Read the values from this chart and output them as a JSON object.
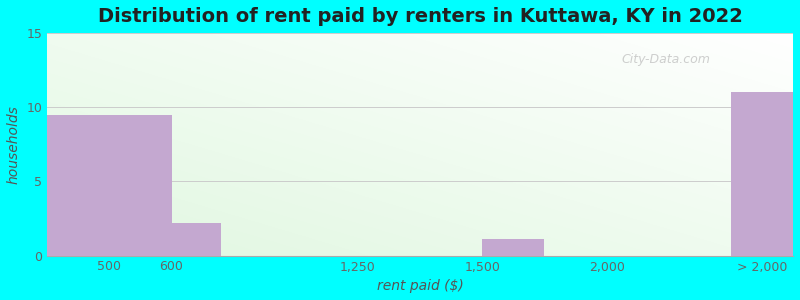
{
  "title": "Distribution of rent paid by renters in Kuttawa, KY in 2022",
  "xlabel": "rent paid ($)",
  "ylabel": "households",
  "bar_labels": [
    "500",
    "600",
    "1,250",
    "1,500",
    "2,000",
    "> 2,000"
  ],
  "bin_edges": [
    0,
    1,
    2,
    3,
    4,
    5,
    6
  ],
  "bar_lefts": [
    0.0,
    1.0,
    2.5,
    3.5,
    5.5
  ],
  "bar_rights": [
    1.0,
    1.4,
    3.5,
    4.0,
    6.0
  ],
  "bar_heights": [
    9.5,
    2.2,
    0.0,
    1.1,
    11.0
  ],
  "tick_positions": [
    0.5,
    1.0,
    2.5,
    3.5,
    4.5,
    5.75
  ],
  "bar_color": "#c4a8d0",
  "ylim": [
    0,
    15
  ],
  "yticks": [
    0,
    5,
    10,
    15
  ],
  "xlim": [
    0,
    6.0
  ],
  "background_color": "#00FFFF",
  "grid_color": "#cccccc",
  "title_fontsize": 14,
  "axis_label_fontsize": 10,
  "tick_fontsize": 9,
  "watermark_text": "City-Data.com"
}
